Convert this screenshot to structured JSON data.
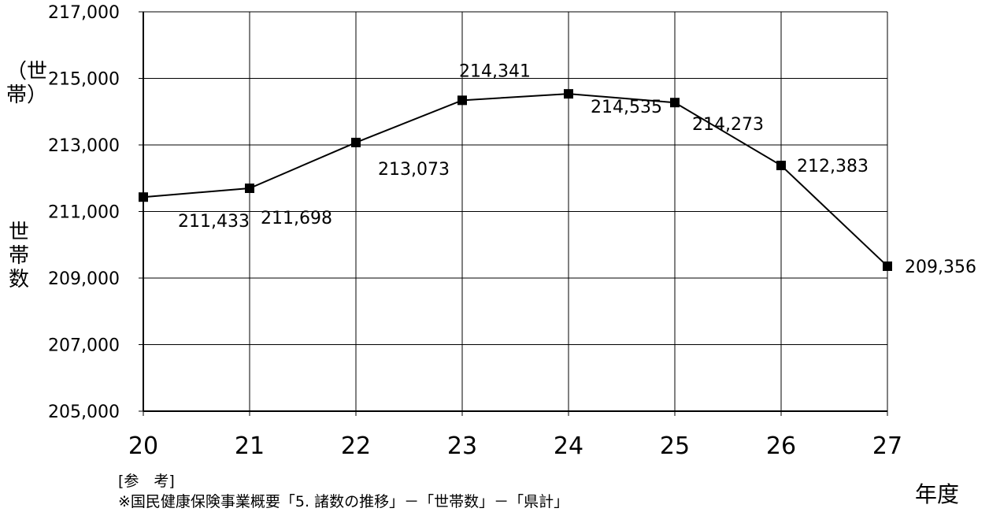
{
  "chart_data": {
    "type": "line",
    "title": "",
    "xlabel": "年度",
    "ylabel": "世帯数",
    "ylabel_unit": "（世帯）",
    "categories": [
      "20",
      "21",
      "22",
      "23",
      "24",
      "25",
      "26",
      "27"
    ],
    "series": [
      {
        "values": [
          211433,
          211698,
          213073,
          214341,
          214535,
          214273,
          212383,
          209356
        ],
        "labels": [
          "211,433",
          "211,698",
          "213,073",
          "214,341",
          "214,535",
          "214,273",
          "212,383",
          "209,356"
        ]
      }
    ],
    "ylim": [
      205000,
      217000
    ],
    "yticks": [
      205000,
      207000,
      209000,
      211000,
      213000,
      215000,
      217000
    ],
    "ytick_labels": [
      "205,000",
      "207,000",
      "209,000",
      "211,000",
      "213,000",
      "215,000",
      "217,000"
    ],
    "grid": true,
    "legend": "none",
    "line_color": "#000000",
    "marker": "square"
  },
  "note": {
    "line1": "[参　考]",
    "line2": "※国民健康保険事業概要「5. 諸数の推移」－「世帯数」－「県計」"
  }
}
